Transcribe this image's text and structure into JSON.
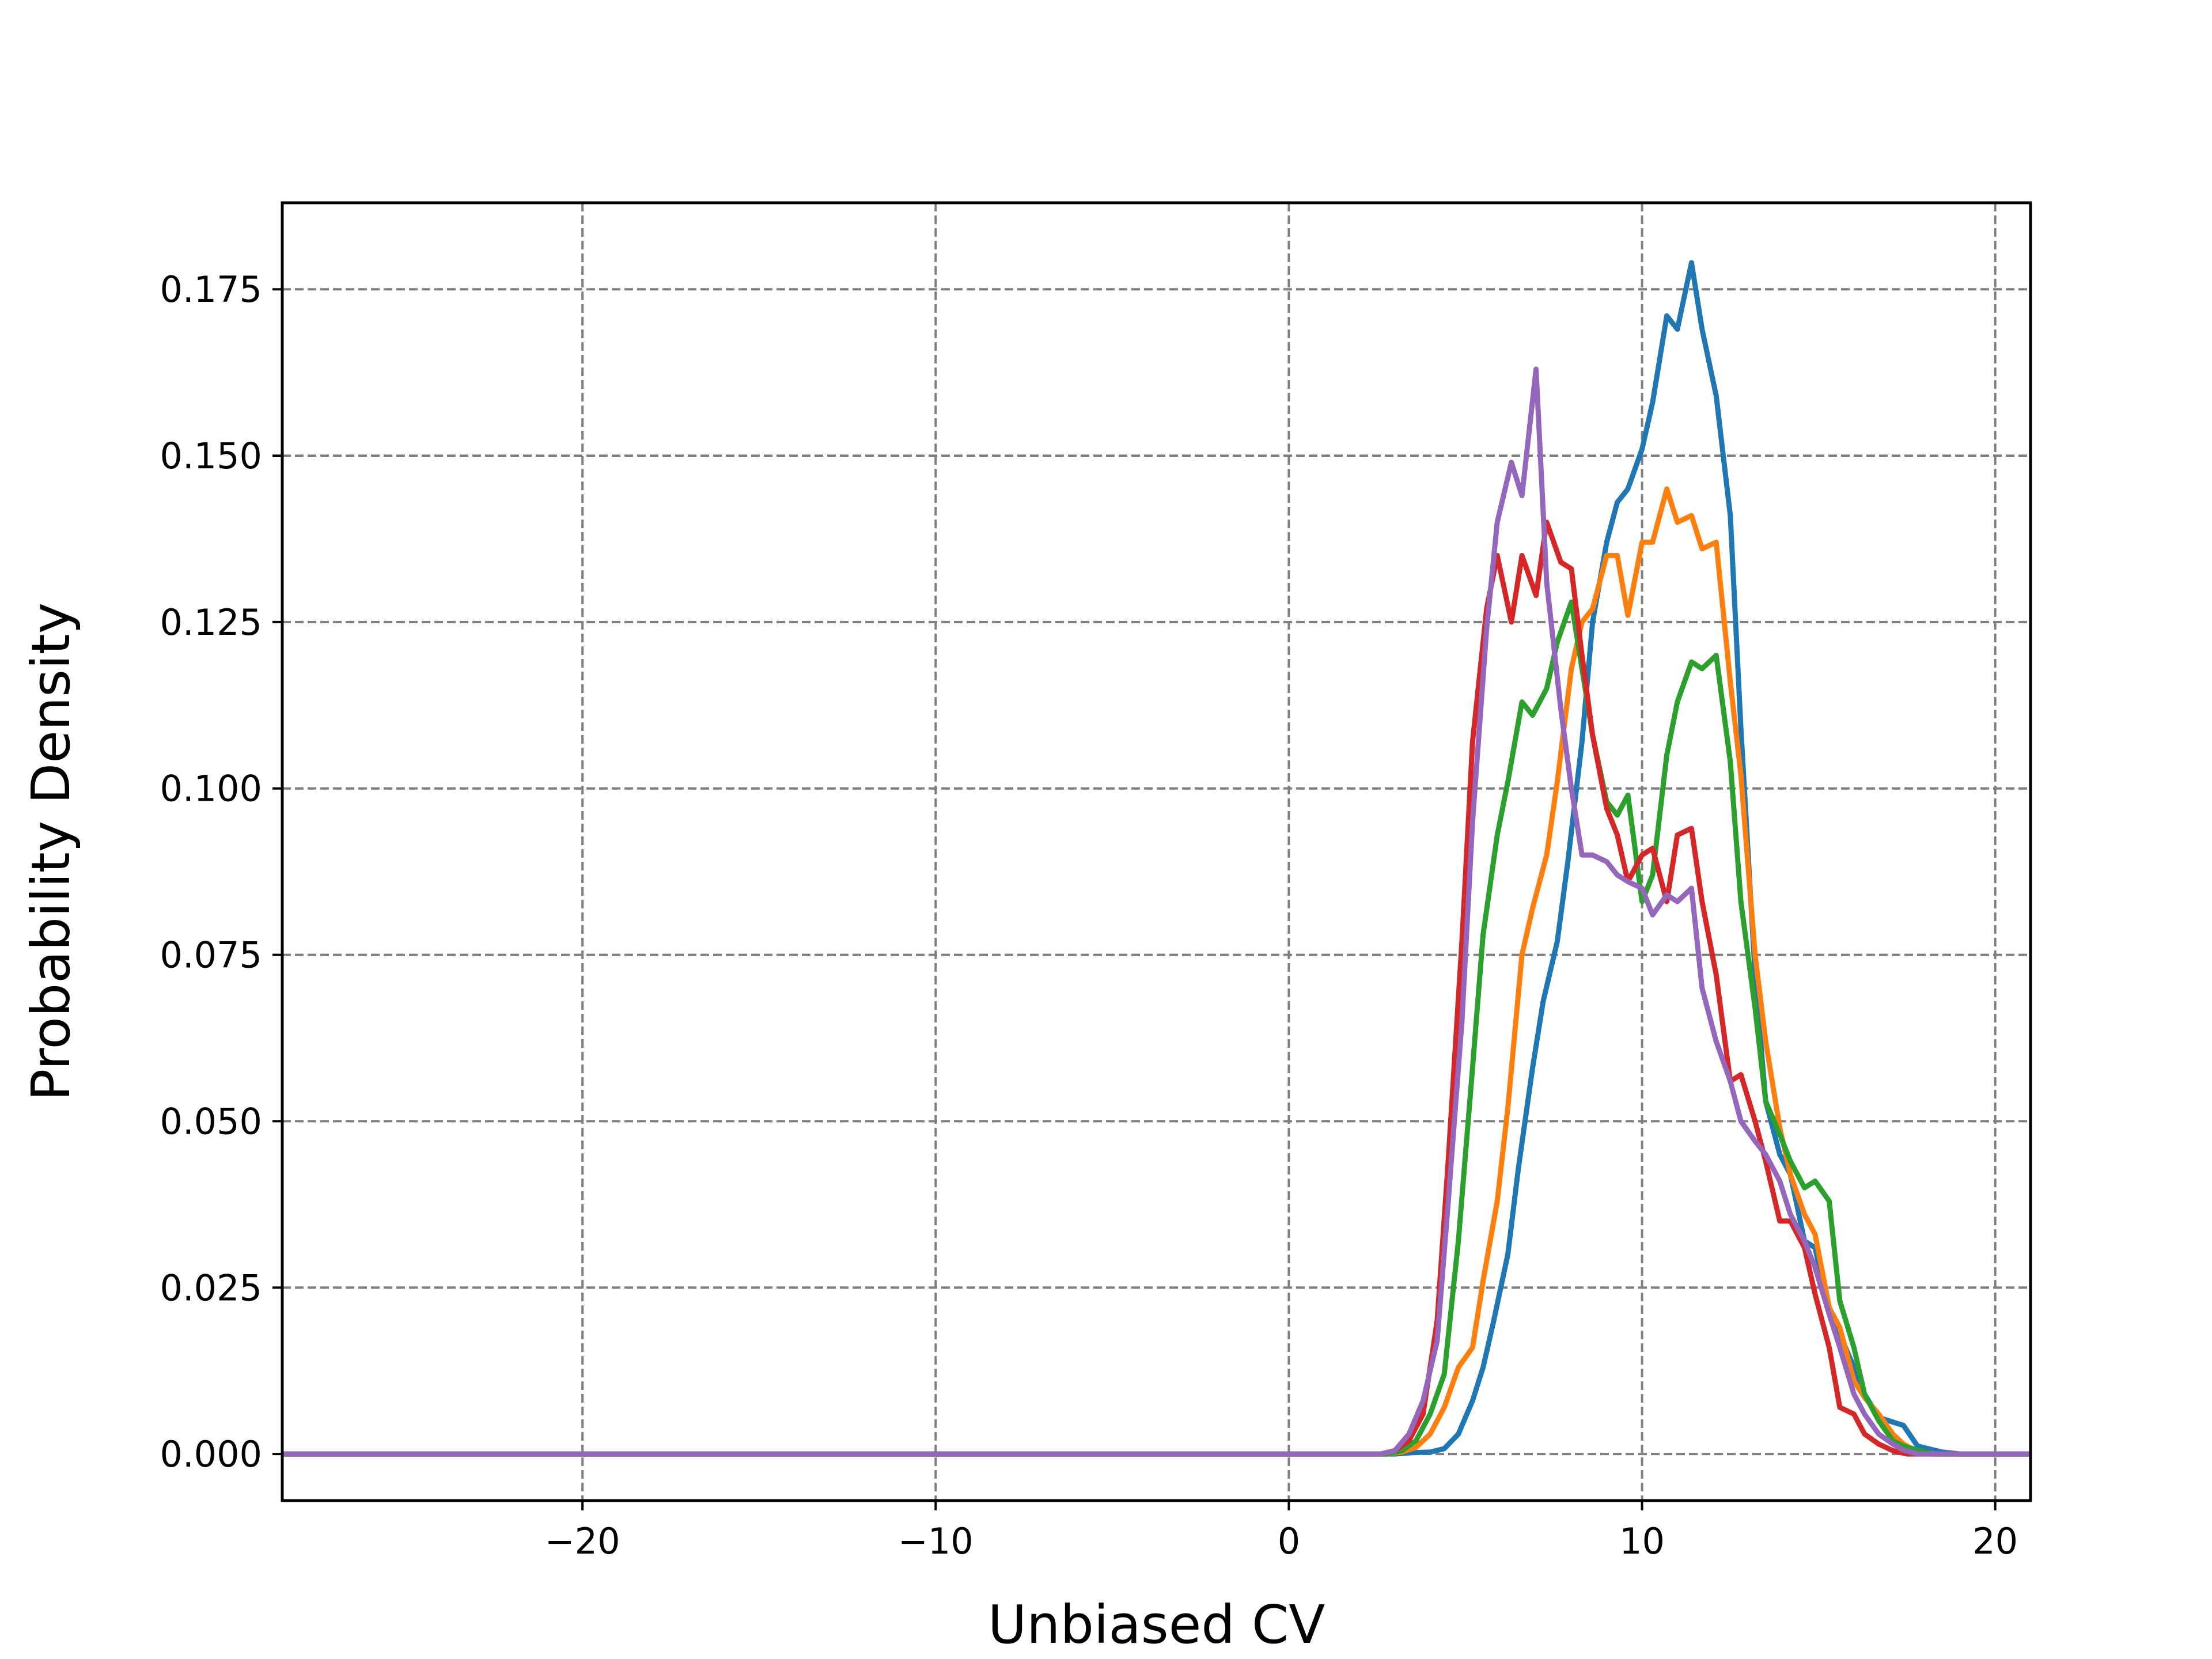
{
  "chart_data": {
    "type": "line",
    "title": "",
    "xlabel": "Unbiased CV",
    "ylabel": "Probability Density",
    "xlim": [
      -28.5,
      21
    ],
    "ylim": [
      -0.007,
      0.188
    ],
    "xticks": [
      -20,
      -10,
      0,
      10,
      20
    ],
    "xtick_labels": [
      "−20",
      "−10",
      "0",
      "10",
      "20"
    ],
    "yticks": [
      0.0,
      0.025,
      0.05,
      0.075,
      0.1,
      0.125,
      0.15,
      0.175
    ],
    "ytick_labels": [
      "0.000",
      "0.025",
      "0.050",
      "0.075",
      "0.100",
      "0.125",
      "0.150",
      "0.175"
    ],
    "grid": true,
    "grid_style": "dashed",
    "legend": "none",
    "series": [
      {
        "color": "#1f77b4",
        "points": [
          [
            -28.5,
            0
          ],
          [
            3.0,
            0
          ],
          [
            3.5,
            0.0002
          ],
          [
            4.0,
            0.0003
          ],
          [
            4.4,
            0.0008
          ],
          [
            4.8,
            0.003
          ],
          [
            5.2,
            0.008
          ],
          [
            5.5,
            0.013
          ],
          [
            5.8,
            0.02
          ],
          [
            6.2,
            0.03
          ],
          [
            6.5,
            0.043
          ],
          [
            6.9,
            0.058
          ],
          [
            7.2,
            0.068
          ],
          [
            7.6,
            0.077
          ],
          [
            7.9,
            0.089
          ],
          [
            8.3,
            0.107
          ],
          [
            8.6,
            0.125
          ],
          [
            9.0,
            0.137
          ],
          [
            9.3,
            0.143
          ],
          [
            9.6,
            0.145
          ],
          [
            10.0,
            0.151
          ],
          [
            10.3,
            0.158
          ],
          [
            10.7,
            0.171
          ],
          [
            11.0,
            0.169
          ],
          [
            11.4,
            0.179
          ],
          [
            11.7,
            0.169
          ],
          [
            12.1,
            0.159
          ],
          [
            12.5,
            0.141
          ],
          [
            12.8,
            0.109
          ],
          [
            13.2,
            0.072
          ],
          [
            13.5,
            0.053
          ],
          [
            13.9,
            0.045
          ],
          [
            14.2,
            0.042
          ],
          [
            14.6,
            0.032
          ],
          [
            14.9,
            0.031
          ],
          [
            15.3,
            0.021
          ],
          [
            15.6,
            0.018
          ],
          [
            16.0,
            0.013
          ],
          [
            16.3,
            0.009
          ],
          [
            16.7,
            0.0055
          ],
          [
            17.1,
            0.0048
          ],
          [
            17.4,
            0.0043
          ],
          [
            17.8,
            0.0012
          ],
          [
            18.1,
            0.0008
          ],
          [
            18.5,
            0.0003
          ],
          [
            19.0,
            0
          ],
          [
            21,
            0
          ]
        ]
      },
      {
        "color": "#ff7f0e",
        "points": [
          [
            -28.5,
            0
          ],
          [
            2.8,
            0
          ],
          [
            3.2,
            0.0003
          ],
          [
            3.6,
            0.001
          ],
          [
            4.0,
            0.003
          ],
          [
            4.4,
            0.007
          ],
          [
            4.8,
            0.013
          ],
          [
            5.2,
            0.016
          ],
          [
            5.5,
            0.026
          ],
          [
            5.9,
            0.038
          ],
          [
            6.2,
            0.052
          ],
          [
            6.6,
            0.075
          ],
          [
            6.9,
            0.082
          ],
          [
            7.3,
            0.09
          ],
          [
            7.6,
            0.101
          ],
          [
            8.0,
            0.118
          ],
          [
            8.3,
            0.125
          ],
          [
            8.6,
            0.127
          ],
          [
            9.0,
            0.135
          ],
          [
            9.3,
            0.135
          ],
          [
            9.6,
            0.126
          ],
          [
            10.0,
            0.137
          ],
          [
            10.3,
            0.137
          ],
          [
            10.7,
            0.145
          ],
          [
            11.0,
            0.14
          ],
          [
            11.4,
            0.141
          ],
          [
            11.7,
            0.136
          ],
          [
            12.1,
            0.137
          ],
          [
            12.5,
            0.116
          ],
          [
            12.8,
            0.102
          ],
          [
            13.2,
            0.075
          ],
          [
            13.5,
            0.062
          ],
          [
            13.9,
            0.049
          ],
          [
            14.2,
            0.042
          ],
          [
            14.6,
            0.036
          ],
          [
            14.9,
            0.033
          ],
          [
            15.3,
            0.022
          ],
          [
            15.6,
            0.019
          ],
          [
            16.0,
            0.011
          ],
          [
            16.3,
            0.0085
          ],
          [
            16.7,
            0.006
          ],
          [
            17.1,
            0.003
          ],
          [
            17.4,
            0.0015
          ],
          [
            17.8,
            0.0003
          ],
          [
            18.3,
            0
          ],
          [
            21,
            0
          ]
        ]
      },
      {
        "color": "#2ca02c",
        "points": [
          [
            -28.5,
            0
          ],
          [
            2.8,
            0
          ],
          [
            3.2,
            0.0005
          ],
          [
            3.6,
            0.002
          ],
          [
            4.0,
            0.006
          ],
          [
            4.4,
            0.012
          ],
          [
            4.8,
            0.032
          ],
          [
            5.2,
            0.058
          ],
          [
            5.5,
            0.078
          ],
          [
            5.9,
            0.093
          ],
          [
            6.2,
            0.101
          ],
          [
            6.6,
            0.113
          ],
          [
            6.9,
            0.111
          ],
          [
            7.3,
            0.115
          ],
          [
            7.6,
            0.122
          ],
          [
            8.0,
            0.128
          ],
          [
            8.3,
            0.118
          ],
          [
            8.6,
            0.108
          ],
          [
            9.0,
            0.098
          ],
          [
            9.3,
            0.096
          ],
          [
            9.6,
            0.099
          ],
          [
            10.0,
            0.083
          ],
          [
            10.3,
            0.087
          ],
          [
            10.7,
            0.105
          ],
          [
            11.0,
            0.113
          ],
          [
            11.4,
            0.119
          ],
          [
            11.7,
            0.118
          ],
          [
            12.1,
            0.12
          ],
          [
            12.5,
            0.104
          ],
          [
            12.8,
            0.083
          ],
          [
            13.2,
            0.067
          ],
          [
            13.5,
            0.053
          ],
          [
            13.9,
            0.048
          ],
          [
            14.2,
            0.044
          ],
          [
            14.6,
            0.04
          ],
          [
            14.9,
            0.041
          ],
          [
            15.3,
            0.038
          ],
          [
            15.6,
            0.023
          ],
          [
            16.0,
            0.016
          ],
          [
            16.3,
            0.009
          ],
          [
            16.7,
            0.005
          ],
          [
            17.1,
            0.002
          ],
          [
            17.4,
            0.0012
          ],
          [
            17.8,
            0.0006
          ],
          [
            18.2,
            0
          ],
          [
            21,
            0
          ]
        ]
      },
      {
        "color": "#d62728",
        "points": [
          [
            -28.5,
            0
          ],
          [
            2.6,
            0
          ],
          [
            3.0,
            0.0005
          ],
          [
            3.4,
            0.002
          ],
          [
            3.8,
            0.006
          ],
          [
            4.2,
            0.02
          ],
          [
            4.5,
            0.043
          ],
          [
            4.9,
            0.077
          ],
          [
            5.2,
            0.107
          ],
          [
            5.6,
            0.127
          ],
          [
            5.9,
            0.135
          ],
          [
            6.3,
            0.125
          ],
          [
            6.6,
            0.135
          ],
          [
            7.0,
            0.129
          ],
          [
            7.3,
            0.14
          ],
          [
            7.7,
            0.134
          ],
          [
            8.0,
            0.133
          ],
          [
            8.3,
            0.12
          ],
          [
            8.6,
            0.108
          ],
          [
            9.0,
            0.097
          ],
          [
            9.3,
            0.093
          ],
          [
            9.6,
            0.086
          ],
          [
            10.0,
            0.09
          ],
          [
            10.3,
            0.091
          ],
          [
            10.7,
            0.083
          ],
          [
            11.0,
            0.093
          ],
          [
            11.4,
            0.094
          ],
          [
            11.7,
            0.083
          ],
          [
            12.1,
            0.072
          ],
          [
            12.5,
            0.056
          ],
          [
            12.8,
            0.057
          ],
          [
            13.2,
            0.05
          ],
          [
            13.5,
            0.044
          ],
          [
            13.9,
            0.035
          ],
          [
            14.2,
            0.035
          ],
          [
            14.6,
            0.031
          ],
          [
            14.9,
            0.024
          ],
          [
            15.3,
            0.016
          ],
          [
            15.6,
            0.007
          ],
          [
            16.0,
            0.006
          ],
          [
            16.3,
            0.003
          ],
          [
            16.7,
            0.0015
          ],
          [
            17.1,
            0.0005
          ],
          [
            17.5,
            0
          ],
          [
            21,
            0
          ]
        ]
      },
      {
        "color": "#9467bd",
        "points": [
          [
            -28.5,
            0
          ],
          [
            2.6,
            0
          ],
          [
            3.0,
            0.0005
          ],
          [
            3.4,
            0.003
          ],
          [
            3.8,
            0.008
          ],
          [
            4.2,
            0.017
          ],
          [
            4.5,
            0.037
          ],
          [
            4.9,
            0.065
          ],
          [
            5.2,
            0.095
          ],
          [
            5.6,
            0.124
          ],
          [
            5.9,
            0.14
          ],
          [
            6.3,
            0.149
          ],
          [
            6.6,
            0.144
          ],
          [
            7.0,
            0.163
          ],
          [
            7.3,
            0.131
          ],
          [
            7.7,
            0.112
          ],
          [
            8.0,
            0.1
          ],
          [
            8.3,
            0.09
          ],
          [
            8.6,
            0.09
          ],
          [
            9.0,
            0.089
          ],
          [
            9.3,
            0.087
          ],
          [
            9.6,
            0.086
          ],
          [
            10.0,
            0.085
          ],
          [
            10.3,
            0.081
          ],
          [
            10.7,
            0.084
          ],
          [
            11.0,
            0.083
          ],
          [
            11.4,
            0.085
          ],
          [
            11.7,
            0.07
          ],
          [
            12.1,
            0.062
          ],
          [
            12.5,
            0.056
          ],
          [
            12.8,
            0.05
          ],
          [
            13.2,
            0.047
          ],
          [
            13.5,
            0.045
          ],
          [
            13.9,
            0.041
          ],
          [
            14.2,
            0.036
          ],
          [
            14.6,
            0.032
          ],
          [
            14.9,
            0.028
          ],
          [
            15.3,
            0.021
          ],
          [
            15.6,
            0.016
          ],
          [
            16.0,
            0.009
          ],
          [
            16.3,
            0.006
          ],
          [
            16.7,
            0.003
          ],
          [
            17.1,
            0.0015
          ],
          [
            17.4,
            0.0006
          ],
          [
            17.8,
            0
          ],
          [
            21,
            0
          ]
        ]
      }
    ]
  }
}
